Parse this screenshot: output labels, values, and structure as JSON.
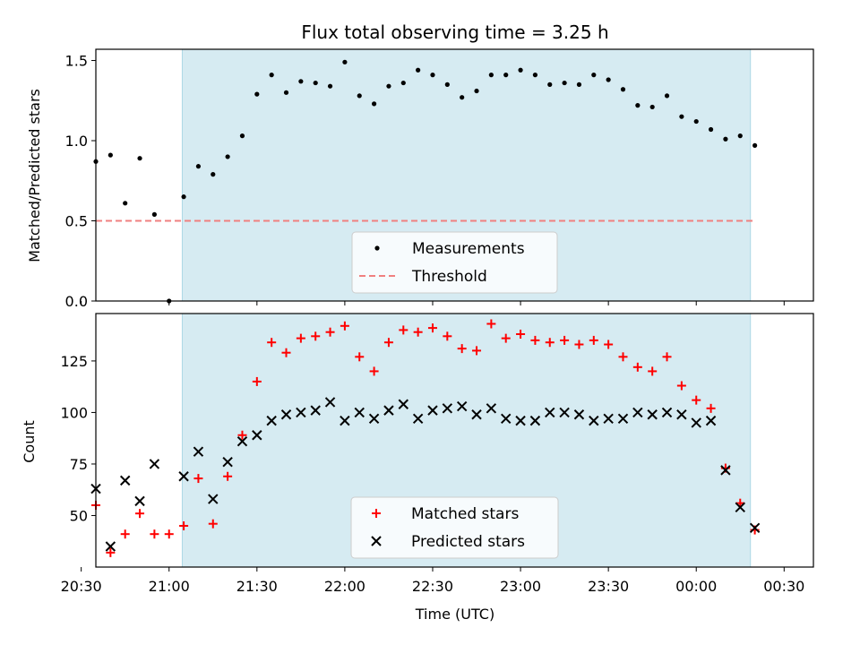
{
  "chart_data": [
    {
      "type": "scatter",
      "title": "Flux total observing time = 3.25 h",
      "xlabel": "",
      "ylabel": "Matched/Predicted stars",
      "ylim": [
        0,
        1.57
      ],
      "yticks": [
        "0.0",
        "0.5",
        "1.0",
        "1.5"
      ],
      "xlim_minutes": [
        1235,
        1480
      ],
      "shaded_region_minutes": [
        1264.5,
        1458.5
      ],
      "shaded_color": "#add8e6",
      "legend_location": "bottom-center",
      "series": [
        {
          "name": "Measurements",
          "marker": "dot",
          "color": "#000000",
          "x": [
            "20:35",
            "20:40",
            "20:45",
            "20:50",
            "20:55",
            "21:00",
            "21:05",
            "21:10",
            "21:15",
            "21:20",
            "21:25",
            "21:30",
            "21:35",
            "21:40",
            "21:45",
            "21:50",
            "21:55",
            "22:00",
            "22:05",
            "22:10",
            "22:15",
            "22:20",
            "22:25",
            "22:30",
            "22:35",
            "22:40",
            "22:45",
            "22:50",
            "22:55",
            "23:00",
            "23:05",
            "23:10",
            "23:15",
            "23:20",
            "23:25",
            "23:30",
            "23:35",
            "23:40",
            "23:45",
            "23:50",
            "23:55",
            "00:00",
            "00:05",
            "00:10",
            "00:15",
            "00:20"
          ],
          "y": [
            0.87,
            0.91,
            0.61,
            0.89,
            0.54,
            0.0,
            0.65,
            0.84,
            0.79,
            0.9,
            1.03,
            1.29,
            1.41,
            1.3,
            1.37,
            1.36,
            1.34,
            1.49,
            1.28,
            1.23,
            1.34,
            1.36,
            1.44,
            1.41,
            1.35,
            1.27,
            1.31,
            1.41,
            1.41,
            1.44,
            1.41,
            1.35,
            1.36,
            1.35,
            1.41,
            1.38,
            1.32,
            1.22,
            1.21,
            1.28,
            1.15,
            1.12,
            1.07,
            1.01,
            1.03,
            0.97
          ]
        },
        {
          "name": "Threshold",
          "marker": "dashed-line",
          "color": "#f08080",
          "x": [
            "20:35",
            "00:20"
          ],
          "y": [
            0.5,
            0.5
          ]
        }
      ]
    },
    {
      "type": "scatter",
      "title": "",
      "xlabel": "Time (UTC)",
      "ylabel": "Count",
      "ylim": [
        25,
        148
      ],
      "yticks": [
        "50",
        "75",
        "100",
        "125"
      ],
      "xticks": [
        "20:30",
        "21:00",
        "21:30",
        "22:00",
        "22:30",
        "23:00",
        "23:30",
        "00:00",
        "00:30"
      ],
      "xlim_minutes": [
        1235,
        1480
      ],
      "shaded_region_minutes": [
        1264.5,
        1458.5
      ],
      "shaded_color": "#add8e6",
      "legend_location": "bottom-center",
      "series": [
        {
          "name": "Matched stars",
          "marker": "plus",
          "color": "#ff0000",
          "x": [
            "20:35",
            "20:40",
            "20:45",
            "20:50",
            "20:55",
            "21:00",
            "21:05",
            "21:10",
            "21:15",
            "21:20",
            "21:25",
            "21:30",
            "21:35",
            "21:40",
            "21:45",
            "21:50",
            "21:55",
            "22:00",
            "22:05",
            "22:10",
            "22:15",
            "22:20",
            "22:25",
            "22:30",
            "22:35",
            "22:40",
            "22:45",
            "22:50",
            "22:55",
            "23:00",
            "23:05",
            "23:10",
            "23:15",
            "23:20",
            "23:25",
            "23:30",
            "23:35",
            "23:40",
            "23:45",
            "23:50",
            "23:55",
            "00:00",
            "00:05",
            "00:10",
            "00:15",
            "00:20"
          ],
          "y": [
            55,
            32,
            41,
            51,
            41,
            41,
            45,
            68,
            46,
            69,
            89,
            115,
            134,
            129,
            136,
            137,
            139,
            142,
            127,
            120,
            134,
            140,
            139,
            141,
            137,
            131,
            130,
            143,
            136,
            138,
            135,
            134,
            135,
            133,
            135,
            133,
            127,
            122,
            120,
            127,
            113,
            106,
            102,
            73,
            56,
            43
          ]
        },
        {
          "name": "Predicted stars",
          "marker": "x",
          "color": "#000000",
          "x": [
            "20:35",
            "20:40",
            "20:45",
            "20:50",
            "20:55",
            "21:05",
            "21:10",
            "21:15",
            "21:20",
            "21:25",
            "21:30",
            "21:35",
            "21:40",
            "21:45",
            "21:50",
            "21:55",
            "22:00",
            "22:05",
            "22:10",
            "22:15",
            "22:20",
            "22:25",
            "22:30",
            "22:35",
            "22:40",
            "22:45",
            "22:50",
            "22:55",
            "23:00",
            "23:05",
            "23:10",
            "23:15",
            "23:20",
            "23:25",
            "23:30",
            "23:35",
            "23:40",
            "23:45",
            "23:50",
            "23:55",
            "00:00",
            "00:05",
            "00:10",
            "00:15",
            "00:20"
          ],
          "y": [
            63,
            35,
            67,
            57,
            75,
            69,
            81,
            58,
            76,
            86,
            89,
            96,
            99,
            100,
            101,
            105,
            96,
            100,
            97,
            101,
            104,
            97,
            101,
            102,
            103,
            99,
            102,
            97,
            96,
            96,
            100,
            100,
            99,
            96,
            97,
            97,
            100,
            99,
            100,
            99,
            95,
            96,
            72,
            54,
            44
          ]
        }
      ]
    }
  ]
}
